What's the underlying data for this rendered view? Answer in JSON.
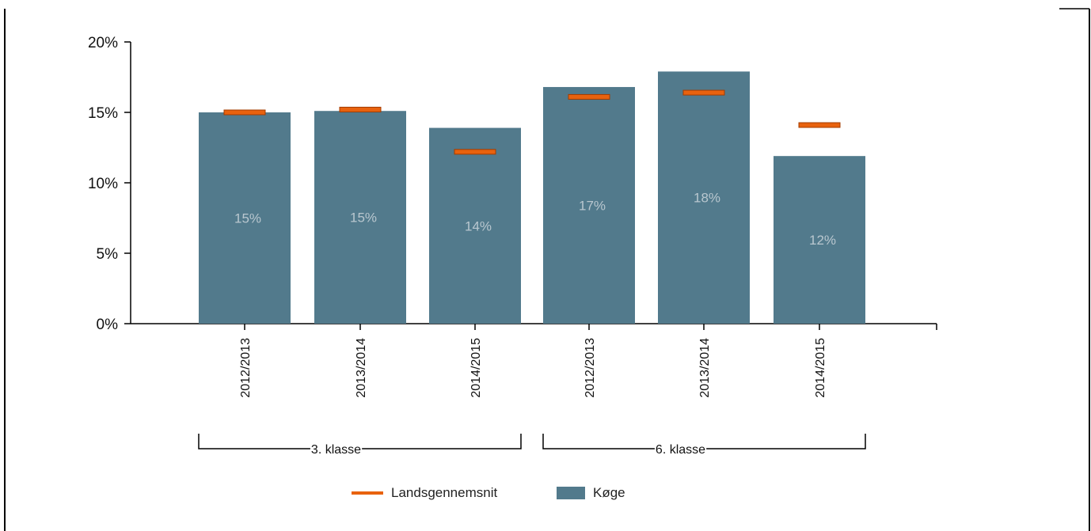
{
  "chart_data": {
    "type": "bar",
    "title": "",
    "xlabel": "",
    "ylabel": "",
    "ylim": [
      0,
      20
    ],
    "y_ticks": [
      "0%",
      "5%",
      "10%",
      "15%",
      "20%"
    ],
    "y_tick_values": [
      0,
      5,
      10,
      15,
      20
    ],
    "categories": [
      "2012/2013",
      "2013/2014",
      "2014/2015",
      "2012/2013",
      "2013/2014",
      "2014/2015"
    ],
    "groups": [
      {
        "label": "3. klasse",
        "category_indices": [
          0,
          1,
          2
        ]
      },
      {
        "label": "6. klasse",
        "category_indices": [
          3,
          4,
          5
        ]
      }
    ],
    "series": [
      {
        "name": "Køge",
        "type": "bar",
        "values": [
          15,
          15.1,
          13.9,
          16.8,
          17.9,
          11.9
        ],
        "data_labels": [
          "15%",
          "15%",
          "14%",
          "17%",
          "18%",
          "12%"
        ],
        "color": "#527a8c"
      },
      {
        "name": "Landsgennemsnit",
        "type": "marker",
        "values": [
          15.0,
          15.2,
          12.2,
          16.1,
          16.4,
          14.1
        ],
        "color": "#e8620e",
        "stroke_color": "#a33c00"
      }
    ],
    "legend": {
      "position": "bottom",
      "items": [
        {
          "label": "Landsgennemsnit",
          "symbol": "line",
          "color": "#e8620e"
        },
        {
          "label": "Køge",
          "symbol": "box",
          "color": "#527a8c"
        }
      ]
    },
    "grid": false
  }
}
